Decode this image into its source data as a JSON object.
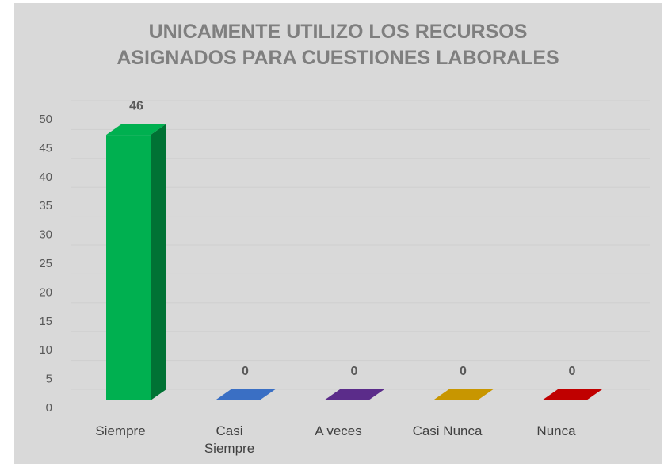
{
  "chart_data": {
    "type": "bar3d",
    "title": "UNICAMENTE UTILIZO LOS RECURSOS ASIGNADOS PARA CUESTIONES LABORALES",
    "categories": [
      "Siempre",
      "Casi Siempre",
      "A veces",
      "Casi Nunca",
      "Nunca"
    ],
    "values": [
      46,
      0,
      0,
      0,
      0
    ],
    "colors": [
      "#00b050",
      "#3a6fc4",
      "#5b2c8a",
      "#c89600",
      "#c00000"
    ],
    "ylim": [
      0,
      50
    ],
    "yticks": [
      0,
      5,
      10,
      15,
      20,
      25,
      30,
      35,
      40,
      45,
      50
    ],
    "grid": true
  }
}
